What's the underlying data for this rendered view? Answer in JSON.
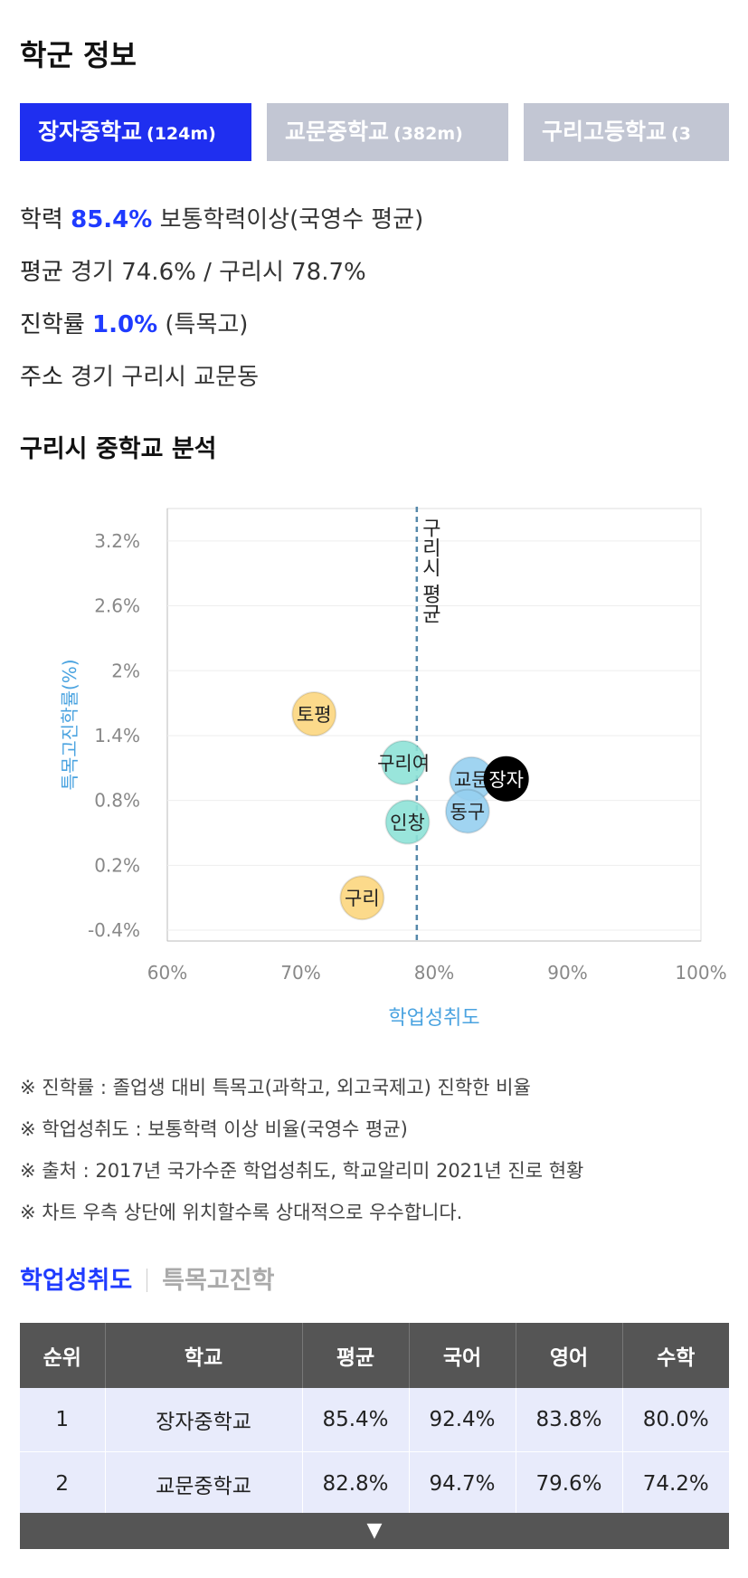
{
  "title": "학군 정보",
  "tabs": [
    {
      "name": "장자중학교",
      "dist": "(124m)",
      "active": true
    },
    {
      "name": "교문중학교",
      "dist": "(382m)",
      "active": false
    },
    {
      "name": "구리고등학교",
      "dist": "(3",
      "active": false
    }
  ],
  "info": {
    "academic": {
      "label": "학력",
      "value": "85.4%",
      "desc": "보통학력이상(국영수 평균)"
    },
    "average": {
      "label": "평균",
      "text": "경기 74.6% / 구리시 78.7%"
    },
    "advance": {
      "label": "진학률",
      "value": "1.0%",
      "desc": "(특목고)"
    },
    "address": {
      "label": "주소",
      "text": "경기 구리시 교문동"
    }
  },
  "chart_title": "구리시 중학교 분석",
  "chart_data": {
    "type": "scatter",
    "xlabel": "학업성취도",
    "ylabel": "특목고진학률(%)",
    "xlim": [
      60,
      100
    ],
    "ylim": [
      -0.5,
      3.5
    ],
    "x_ticks": [
      "60%",
      "70%",
      "80%",
      "90%",
      "100%"
    ],
    "x_tick_values": [
      60,
      70,
      80,
      90,
      100
    ],
    "y_ticks": [
      "-0.4%",
      "0.2%",
      "0.8%",
      "1.4%",
      "2%",
      "2.6%",
      "3.2%"
    ],
    "y_tick_values": [
      -0.4,
      0.2,
      0.8,
      1.4,
      2.0,
      2.6,
      3.2
    ],
    "ref_line": {
      "x": 78.7,
      "label": "구리시 평균"
    },
    "points": [
      {
        "label": "토평",
        "x": 71.0,
        "y": 1.6,
        "color": "#fcd77f"
      },
      {
        "label": "구리",
        "x": 74.6,
        "y": -0.1,
        "color": "#fcd77f"
      },
      {
        "label": "구리여",
        "x": 77.7,
        "y": 1.15,
        "color": "#8ee3d8"
      },
      {
        "label": "인창",
        "x": 78.0,
        "y": 0.6,
        "color": "#8ee3d8"
      },
      {
        "label": "교문",
        "x": 82.8,
        "y": 1.0,
        "color": "#96d0f0"
      },
      {
        "label": "동구",
        "x": 82.5,
        "y": 0.7,
        "color": "#96d0f0"
      },
      {
        "label": "장자",
        "x": 85.4,
        "y": 1.0,
        "color": "#000000"
      }
    ]
  },
  "notes": [
    "※ 진학률 : 졸업생 대비 특목고(과학고, 외고국제고) 진학한 비율",
    "※ 학업성취도 : 보통학력 이상 비율(국영수 평균)",
    "※ 출처 : 2017년 국가수준 학업성취도, 학교알리미 2021년 진로 현황",
    "※ 차트 우측 상단에 위치할수록 상대적으로 우수합니다."
  ],
  "subtabs": {
    "active": "학업성취도",
    "inactive": "특목고진학"
  },
  "table": {
    "headers": [
      "순위",
      "학교",
      "평균",
      "국어",
      "영어",
      "수학"
    ],
    "rows": [
      [
        "1",
        "장자중학교",
        "85.4%",
        "92.4%",
        "83.8%",
        "80.0%"
      ],
      [
        "2",
        "교문중학교",
        "82.8%",
        "94.7%",
        "79.6%",
        "74.2%"
      ]
    ]
  },
  "more_icon": "triangle-down-icon",
  "colors": {
    "accent": "#1f2ff0",
    "tab_inactive": "#c2c6d3",
    "axis_label": "#4aa3e0"
  }
}
